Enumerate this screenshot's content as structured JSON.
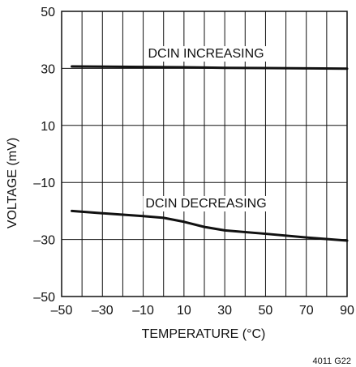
{
  "chart_data": {
    "type": "line",
    "title": "",
    "xlabel": "TEMPERATURE (°C)",
    "ylabel": "VOLTAGE (mV)",
    "xlim": [
      -50,
      90
    ],
    "ylim": [
      -50,
      50
    ],
    "xticks": [
      -50,
      -30,
      -10,
      10,
      30,
      50,
      70,
      90
    ],
    "yticks": [
      -50,
      -30,
      -10,
      10,
      30,
      50
    ],
    "xtick_labels": [
      "–50",
      "–30",
      "–10",
      "10",
      "30",
      "50",
      "70",
      "90"
    ],
    "ytick_labels": [
      "–50",
      "–30",
      "–10",
      "10",
      "30",
      "50"
    ],
    "grid": true,
    "series": [
      {
        "name": "DCIN INCREASING",
        "x": [
          -45,
          -30,
          -10,
          10,
          30,
          50,
          70,
          90
        ],
        "y": [
          30.7,
          30.6,
          30.5,
          30.4,
          30.2,
          30.1,
          30.0,
          29.9
        ]
      },
      {
        "name": "DCIN DECREASING",
        "x": [
          -45,
          -30,
          -10,
          0,
          10,
          20,
          30,
          50,
          70,
          90
        ],
        "y": [
          -20,
          -20.8,
          -21.8,
          -22.4,
          -23.8,
          -25.6,
          -26.8,
          -28.0,
          -29.3,
          -30.4
        ]
      }
    ],
    "figure_code": "4011 G22"
  }
}
